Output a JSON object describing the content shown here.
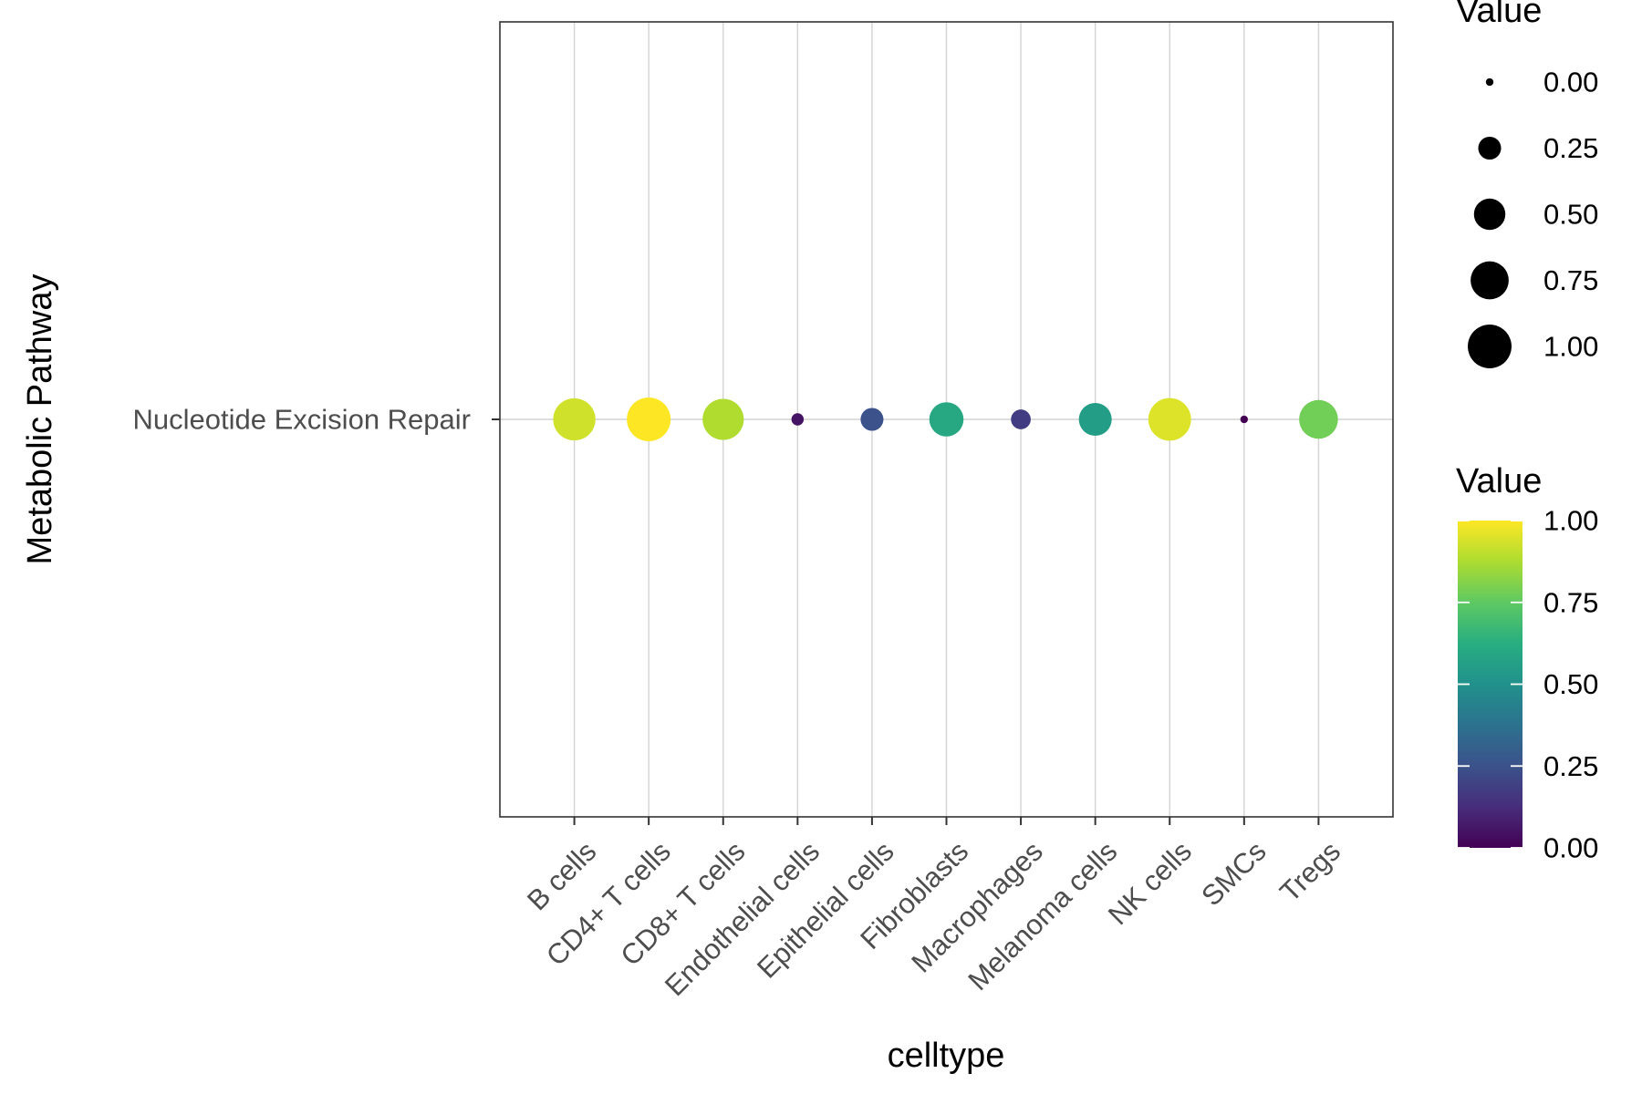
{
  "chart_data": {
    "type": "dot",
    "xlabel": "celltype",
    "ylabel": "Metabolic Pathway",
    "categories": [
      "B cells",
      "CD4+ T cells",
      "CD8+ T cells",
      "Endothelial cells",
      "Epithelial cells",
      "Fibroblasts",
      "Macrophages",
      "Melanoma cells",
      "NK cells",
      "SMCs",
      "Tregs"
    ],
    "rows": [
      "Nucleotide Excision Repair"
    ],
    "series": [
      {
        "row": "Nucleotide Excision Repair",
        "values": [
          0.93,
          1.0,
          0.88,
          0.05,
          0.25,
          0.6,
          0.18,
          0.55,
          0.95,
          0.0,
          0.78
        ]
      }
    ],
    "size_legend": {
      "title": "Value",
      "breaks": [
        "0.00",
        "0.25",
        "0.50",
        "0.75",
        "1.00"
      ],
      "values": [
        0,
        0.25,
        0.5,
        0.75,
        1.0
      ]
    },
    "color_legend": {
      "title": "Value",
      "breaks": [
        "1.00",
        "0.75",
        "0.50",
        "0.25",
        "0.00"
      ],
      "values": [
        1.0,
        0.75,
        0.5,
        0.25,
        0.0
      ],
      "colormap": "viridis"
    },
    "grid": true,
    "legend_position": "right"
  }
}
